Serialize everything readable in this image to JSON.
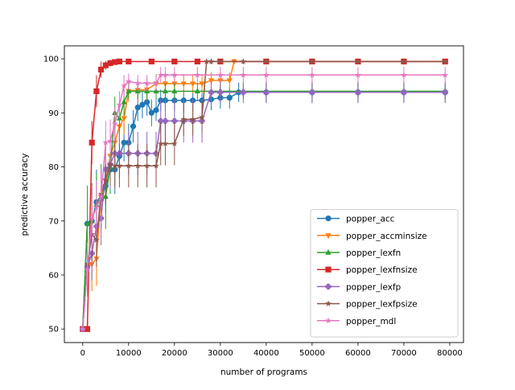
{
  "chart_data": {
    "type": "line",
    "title": "",
    "xlabel": "number of programs",
    "ylabel": "predictive accuracy",
    "xlim": [
      -4000,
      83000
    ],
    "ylim": [
      47.5,
      102.4
    ],
    "xticks": [
      0,
      10000,
      20000,
      30000,
      40000,
      50000,
      60000,
      70000,
      80000
    ],
    "yticks": [
      50,
      60,
      70,
      80,
      90,
      100
    ],
    "grid": false,
    "legend_position": "lower-right",
    "series": [
      {
        "name": "popper_acc",
        "color": "#1f77b4",
        "marker": "circle",
        "x": [
          0,
          1000,
          2000,
          3000,
          4000,
          5000,
          6000,
          7000,
          8000,
          9000,
          10000,
          11000,
          12000,
          13000,
          14000,
          15000,
          16000,
          17000,
          18000,
          20000,
          22000,
          24000,
          26000,
          28000,
          30000,
          32000,
          34000,
          40000,
          50000,
          60000,
          70000,
          79000
        ],
        "y": [
          50,
          69.5,
          70,
          73.5,
          74,
          76.5,
          79.5,
          79.5,
          82,
          84.5,
          84.5,
          87.5,
          91,
          91.5,
          92,
          90,
          90.5,
          92.3,
          92.3,
          92.3,
          92.3,
          92.3,
          92.3,
          92.5,
          92.8,
          92.8,
          93.8,
          93.8,
          93.8,
          93.8,
          93.8,
          93.8
        ],
        "err": [
          0,
          7,
          6,
          6,
          5.5,
          5,
          4.5,
          4.5,
          4,
          3.5,
          3.5,
          3,
          2.5,
          2.5,
          2.5,
          2.5,
          2,
          2,
          2,
          2,
          2,
          2,
          2,
          2,
          2,
          2,
          1.8,
          1.8,
          1.8,
          1.8,
          1.8,
          1.8
        ]
      },
      {
        "name": "popper_accminsize",
        "color": "#ff7f0e",
        "marker": "triangle-down",
        "x": [
          0,
          1000,
          2000,
          3000,
          4000,
          5000,
          6000,
          7000,
          8000,
          9000,
          10000,
          12000,
          14000,
          16000,
          18000,
          20000,
          22000,
          24000,
          26000,
          28000,
          30000,
          32000,
          33000,
          40000,
          50000,
          60000,
          70000,
          79000
        ],
        "y": [
          50,
          61.5,
          62,
          63,
          74.5,
          77.5,
          82,
          84.5,
          87.5,
          89,
          94,
          94.2,
          94.3,
          95.4,
          95.4,
          95.4,
          95.4,
          95.4,
          95.4,
          96,
          96,
          96,
          99.5,
          99.5,
          99.5,
          99.5,
          99.5,
          99.5
        ],
        "err": [
          0,
          5,
          5,
          5,
          4.5,
          4.5,
          4,
          4,
          3.5,
          3,
          2,
          2,
          2,
          1.8,
          1.8,
          1.8,
          1.8,
          1.8,
          1.8,
          1.5,
          1.5,
          1.5,
          0.5,
          0.5,
          0.5,
          0.5,
          0.5,
          0.5
        ]
      },
      {
        "name": "popper_lexfn",
        "color": "#2ca02c",
        "marker": "triangle-up",
        "x": [
          0,
          1000,
          2000,
          3000,
          4000,
          5000,
          6000,
          7000,
          8000,
          9000,
          10000,
          12000,
          14000,
          16000,
          18000,
          20000,
          25000,
          30000,
          35000,
          40000,
          50000,
          60000,
          70000,
          79000
        ],
        "y": [
          50,
          69.5,
          70,
          73,
          74.5,
          74.5,
          80,
          90,
          89,
          92,
          94,
          94,
          94,
          94,
          94,
          94,
          94,
          94,
          94,
          94,
          94,
          94,
          94,
          94
        ],
        "err": [
          0,
          7,
          7,
          6,
          6,
          6,
          5,
          3,
          3,
          2.5,
          1.5,
          1.5,
          1.5,
          1.5,
          1.5,
          1.5,
          1.5,
          1.5,
          1.5,
          1.5,
          1.5,
          1.5,
          1.5,
          1.5
        ]
      },
      {
        "name": "popper_lexfnsize",
        "color": "#d62728",
        "marker": "square",
        "x": [
          0,
          1000,
          2000,
          3000,
          4000,
          5000,
          6000,
          7000,
          8000,
          10000,
          15000,
          20000,
          25000,
          30000,
          40000,
          50000,
          60000,
          70000,
          79000
        ],
        "y": [
          50,
          50,
          84.5,
          94,
          98,
          98.8,
          99.2,
          99.4,
          99.5,
          99.5,
          99.5,
          99.5,
          99.5,
          99.5,
          99.5,
          99.5,
          99.5,
          99.5,
          99.5
        ],
        "err": [
          0,
          0,
          4,
          3,
          1.5,
          0.8,
          0.6,
          0.4,
          0.3,
          0.3,
          0.3,
          0.3,
          0.3,
          0.3,
          0.3,
          0.3,
          0.3,
          0.3,
          0.3
        ]
      },
      {
        "name": "popper_lexfp",
        "color": "#9467bd",
        "marker": "plus",
        "x": [
          0,
          1000,
          2000,
          3000,
          4000,
          5000,
          6000,
          7000,
          8000,
          10000,
          12000,
          14000,
          16000,
          17000,
          18000,
          20000,
          22000,
          24000,
          26000,
          28000,
          30000,
          35000,
          40000,
          50000,
          60000,
          70000,
          79000
        ],
        "y": [
          50,
          61.5,
          64,
          69,
          70.5,
          79.5,
          80.5,
          82.5,
          82.5,
          82.5,
          82.5,
          82.5,
          82.5,
          88.5,
          88.5,
          88.5,
          88.5,
          88.5,
          88.5,
          93.8,
          93.8,
          93.8,
          93.8,
          93.8,
          93.8,
          93.8,
          93.8
        ],
        "err": [
          0,
          5,
          5,
          5,
          5,
          4.5,
          4.5,
          4,
          4,
          4,
          4,
          4,
          4,
          4,
          4,
          4,
          4,
          4,
          4,
          2,
          2,
          2,
          2,
          2,
          2,
          2,
          2
        ]
      },
      {
        "name": "popper_lexfpsize",
        "color": "#8c564b",
        "marker": "star",
        "x": [
          0,
          1000,
          2000,
          3000,
          4000,
          5000,
          6000,
          7000,
          8000,
          10000,
          12000,
          14000,
          16000,
          17000,
          18000,
          20000,
          22000,
          24000,
          26000,
          27000,
          28000,
          30000,
          35000,
          40000,
          50000,
          60000,
          70000,
          79000
        ],
        "y": [
          50,
          62,
          67.5,
          66.5,
          75,
          77.5,
          80.5,
          80.2,
          80.2,
          80.2,
          80.2,
          80.2,
          80.2,
          84.3,
          84.3,
          84.3,
          88.8,
          88.8,
          89.2,
          99.5,
          99.5,
          99.5,
          99.5,
          99.5,
          99.5,
          99.5,
          99.5,
          99.5
        ],
        "err": [
          0,
          5,
          5,
          5,
          4.5,
          4.5,
          4,
          4,
          4,
          4,
          4,
          4,
          4,
          4,
          4,
          4,
          3,
          3,
          3,
          0.5,
          0.5,
          0.5,
          0.5,
          0.5,
          0.5,
          0.5,
          0.5,
          0.5
        ]
      },
      {
        "name": "popper_mdl",
        "color": "#e377c2",
        "marker": "star",
        "x": [
          0,
          1000,
          2000,
          3000,
          4000,
          5000,
          6000,
          7000,
          8000,
          9000,
          10000,
          12000,
          14000,
          16000,
          17000,
          18000,
          20000,
          25000,
          30000,
          35000,
          40000,
          50000,
          60000,
          70000,
          79000
        ],
        "y": [
          50,
          61,
          70.5,
          72.5,
          74.5,
          84.5,
          84.8,
          88,
          91.5,
          95,
          95.8,
          95.5,
          95.5,
          95.5,
          97,
          97,
          97,
          97,
          97,
          97,
          97,
          97,
          97,
          97,
          97
        ],
        "err": [
          0,
          5,
          6,
          5,
          5,
          4,
          4,
          3,
          2.5,
          2,
          1.5,
          1.5,
          1.5,
          1.5,
          1.5,
          1.5,
          1.5,
          1.5,
          1.5,
          1.5,
          1.5,
          1.5,
          1.5,
          1.5,
          1.5
        ]
      }
    ]
  }
}
